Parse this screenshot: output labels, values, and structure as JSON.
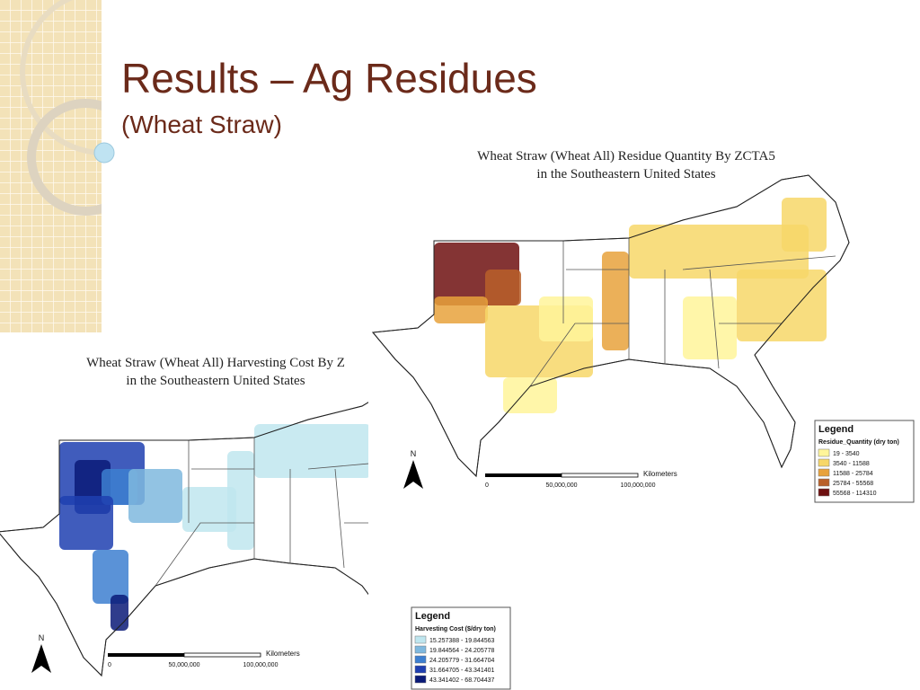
{
  "slide": {
    "title": "Results – Ag Residues",
    "subtitle": "(Wheat Straw)"
  },
  "maps": [
    {
      "title": [
        "Wheat Straw (Wheat All) Residue Quantity By ZCTA5",
        "in the Southeastern United States"
      ],
      "legend": {
        "heading": "Legend",
        "field": "Residue_Quantity (dry ton)",
        "classes": [
          {
            "label": "19 - 3540",
            "color": "#fff59a"
          },
          {
            "label": "3540 - 11588",
            "color": "#f7d768"
          },
          {
            "label": "11588 - 25784",
            "color": "#e8a23c"
          },
          {
            "label": "25784 - 55568",
            "color": "#b9602a"
          },
          {
            "label": "55568 - 114310",
            "color": "#6e1010"
          }
        ]
      },
      "scale": {
        "unit": "Kilometers",
        "ticks": [
          "0",
          "50,000,000",
          "100,000,000"
        ]
      },
      "north": "N"
    },
    {
      "title": [
        "Wheat Straw (Wheat All) Harvesting Cost By Z",
        "in the Southeastern United States"
      ],
      "legend": {
        "heading": "Legend",
        "field": "Harvesting Cost ($/dry ton)",
        "classes": [
          {
            "label": "15.257388 - 19.844563",
            "color": "#bfe6ef"
          },
          {
            "label": "19.844564 - 24.205778",
            "color": "#7fb8de"
          },
          {
            "label": "24.205779 - 31.664704",
            "color": "#3d7fd0"
          },
          {
            "label": "31.664705 - 43.341401",
            "color": "#1f3fb0"
          },
          {
            "label": "43.341402 - 68.704437",
            "color": "#0a1a78"
          }
        ]
      },
      "scale": {
        "unit": "Kilometers",
        "ticks": [
          "0",
          "50,000,000",
          "100,000,000"
        ]
      },
      "north": "N"
    }
  ]
}
